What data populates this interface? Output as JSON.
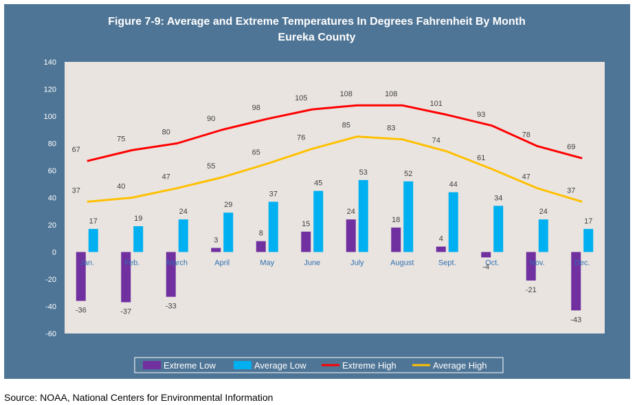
{
  "source_note": "Source: NOAA, National Centers for Environmental Information",
  "colors": {
    "frame": "#4f7596",
    "plot_bg": "#e9e4e0",
    "extreme_low": "#7030a0",
    "average_low": "#00b0f0",
    "extreme_high": "#ff0000",
    "average_high": "#ffc000"
  },
  "chart_data": {
    "type": "bar",
    "title": "Figure 7-9: Average and Extreme Temperatures In Degrees Fahrenheit By Month",
    "subtitle": "Eureka County",
    "xlabel": "",
    "ylabel": "",
    "ylim": [
      -60,
      140
    ],
    "yticks": [
      -60,
      -40,
      -20,
      0,
      20,
      40,
      60,
      80,
      100,
      120,
      140
    ],
    "grid": false,
    "legend_position": "bottom",
    "categories": [
      "Jan.",
      "Feb.",
      "March",
      "April",
      "May",
      "June",
      "July",
      "August",
      "Sept.",
      "Oct.",
      "Nov.",
      "Dec."
    ],
    "series": [
      {
        "name": "Extreme Low",
        "kind": "bar",
        "values": [
          -36,
          -37,
          -33,
          3,
          8,
          15,
          24,
          18,
          4,
          -4,
          -21,
          -43
        ]
      },
      {
        "name": "Average Low",
        "kind": "bar",
        "values": [
          17,
          19,
          24,
          29,
          37,
          45,
          53,
          52,
          44,
          34,
          24,
          17
        ]
      },
      {
        "name": "Extreme High",
        "kind": "line",
        "values": [
          67,
          75,
          80,
          90,
          98,
          105,
          108,
          108,
          101,
          93,
          78,
          69
        ]
      },
      {
        "name": "Average High",
        "kind": "line",
        "values": [
          37,
          40,
          47,
          55,
          65,
          76,
          85,
          83,
          74,
          61,
          47,
          37
        ]
      }
    ]
  }
}
